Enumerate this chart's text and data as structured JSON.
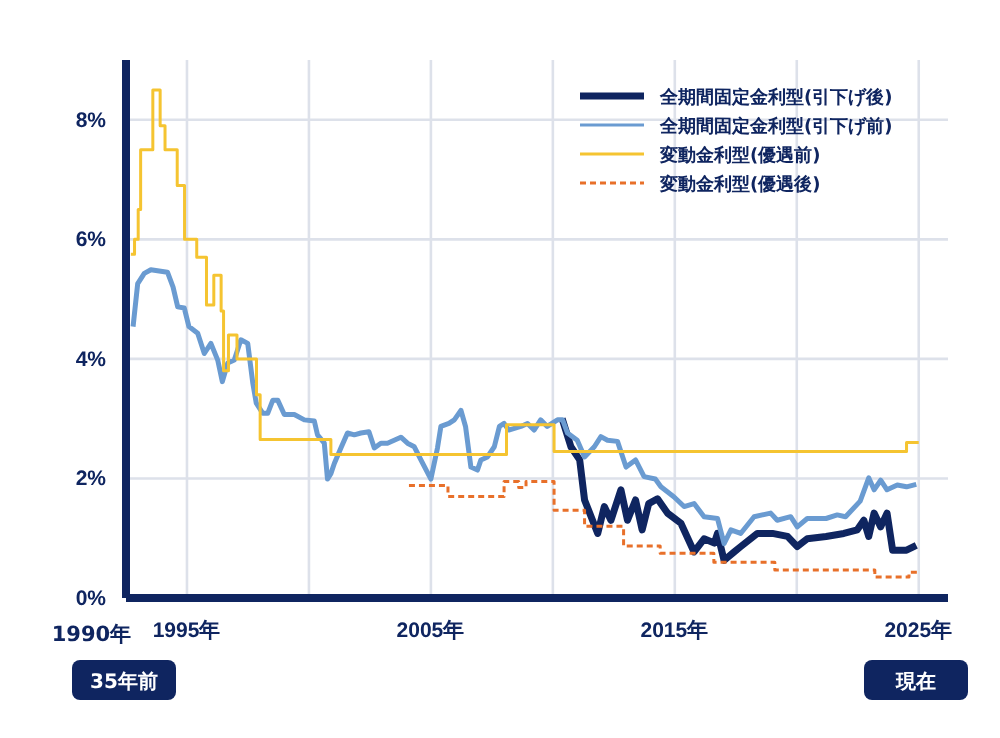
{
  "chart_data": {
    "type": "line",
    "xlim": [
      1992.5,
      2026.2
    ],
    "xticks": [
      {
        "value": 1995,
        "label": "1995年"
      },
      {
        "value": 2000,
        "label": null
      },
      {
        "value": 2005,
        "label": "2005年"
      },
      {
        "value": 2010,
        "label": null
      },
      {
        "value": 2015,
        "label": "2015年"
      },
      {
        "value": 2020,
        "label": null
      },
      {
        "value": 2025,
        "label": "2025年"
      }
    ],
    "ylim": [
      0,
      9
    ],
    "yticks": [
      {
        "value": 0,
        "label": "0%"
      },
      {
        "value": 2,
        "label": "2%"
      },
      {
        "value": 4,
        "label": "4%"
      },
      {
        "value": 6,
        "label": "6%"
      },
      {
        "value": 8,
        "label": "8%"
      }
    ],
    "grid": true,
    "legend": "top right",
    "marker": "none",
    "annotations": [
      "1990年",
      "35年前",
      "現在"
    ],
    "series": [
      {
        "name": "全期間固定金利型(引下げ後)",
        "color": "#0f2560",
        "line_style": "solid",
        "x": [
          2010.38,
          2010.74,
          2011.1,
          2011.3,
          2011.57,
          2011.84,
          2012.11,
          2012.38,
          2012.79,
          2013.06,
          2013.39,
          2013.66,
          2013.93,
          2014.29,
          2014.7,
          2015.25,
          2015.79,
          2016.2,
          2016.62,
          2016.75,
          2017.02,
          2017.43,
          2017.7,
          2018.38,
          2019.0,
          2019.62,
          2020.02,
          2020.43,
          2021.2,
          2021.93,
          2022.48,
          2022.75,
          2022.95,
          2023.17,
          2023.44,
          2023.7,
          2023.93,
          2024.5,
          2024.9
        ],
        "values": [
          3.0,
          2.53,
          2.31,
          1.64,
          1.36,
          1.08,
          1.53,
          1.3,
          1.81,
          1.3,
          1.64,
          1.14,
          1.58,
          1.66,
          1.42,
          1.25,
          0.77,
          0.99,
          0.92,
          1.08,
          0.63,
          0.77,
          0.86,
          1.08,
          1.08,
          1.03,
          0.86,
          0.99,
          1.03,
          1.08,
          1.14,
          1.3,
          1.03,
          1.42,
          1.19,
          1.42,
          0.8,
          0.8,
          0.88
        ]
      },
      {
        "name": "全期間固定金利型(引下げ前)",
        "color": "#6a9bd1",
        "line_style": "solid",
        "x": [
          1992.79,
          1992.98,
          1993.25,
          1993.52,
          1994.2,
          1994.43,
          1994.62,
          1994.89,
          1995.08,
          1995.44,
          1995.71,
          1995.98,
          1996.26,
          1996.45,
          1996.67,
          1996.94,
          1997.21,
          1997.49,
          1997.7,
          1997.84,
          1998.11,
          1998.31,
          1998.52,
          1998.72,
          1998.99,
          1999.4,
          1999.81,
          2000.22,
          2000.35,
          2000.63,
          2000.76,
          2000.9,
          2001.04,
          2001.31,
          2001.58,
          2001.86,
          2002.13,
          2002.46,
          2002.68,
          2002.95,
          2003.22,
          2003.77,
          2004.04,
          2004.32,
          2004.59,
          2005.0,
          2005.27,
          2005.41,
          2005.74,
          2005.96,
          2006.23,
          2006.42,
          2006.64,
          2006.91,
          2007.05,
          2007.32,
          2007.6,
          2007.81,
          2008.0,
          2008.19,
          2008.69,
          2008.96,
          2009.23,
          2009.5,
          2009.77,
          2010.19,
          2010.4,
          2010.6,
          2011.0,
          2011.3,
          2011.7,
          2011.97,
          2012.24,
          2012.65,
          2013.0,
          2013.39,
          2013.74,
          2014.2,
          2014.43,
          2014.97,
          2015.38,
          2015.79,
          2016.2,
          2016.75,
          2017.02,
          2017.3,
          2017.7,
          2018.25,
          2018.93,
          2019.2,
          2019.75,
          2020.02,
          2020.43,
          2021.2,
          2021.66,
          2022.0,
          2022.6,
          2022.95,
          2023.17,
          2023.44,
          2023.7,
          2024.12,
          2024.5,
          2024.9
        ],
        "values": [
          4.54,
          5.26,
          5.43,
          5.49,
          5.45,
          5.2,
          4.87,
          4.85,
          4.54,
          4.43,
          4.09,
          4.26,
          3.98,
          3.62,
          3.93,
          3.98,
          4.32,
          4.26,
          3.59,
          3.26,
          3.09,
          3.09,
          3.31,
          3.31,
          3.07,
          3.07,
          2.98,
          2.96,
          2.73,
          2.59,
          1.99,
          2.08,
          2.25,
          2.51,
          2.76,
          2.73,
          2.76,
          2.78,
          2.51,
          2.59,
          2.59,
          2.69,
          2.59,
          2.53,
          2.31,
          1.99,
          2.51,
          2.87,
          2.92,
          2.98,
          3.14,
          2.87,
          2.19,
          2.14,
          2.31,
          2.36,
          2.53,
          2.87,
          2.92,
          2.81,
          2.87,
          2.92,
          2.81,
          2.98,
          2.87,
          2.98,
          2.98,
          2.76,
          2.64,
          2.36,
          2.53,
          2.7,
          2.64,
          2.62,
          2.19,
          2.31,
          2.03,
          1.99,
          1.86,
          1.69,
          1.53,
          1.58,
          1.36,
          1.33,
          0.91,
          1.14,
          1.08,
          1.36,
          1.42,
          1.3,
          1.36,
          1.19,
          1.33,
          1.33,
          1.39,
          1.36,
          1.62,
          2.01,
          1.81,
          1.97,
          1.81,
          1.89,
          1.86,
          1.9
        ]
      },
      {
        "name": "変動金利型(優遇前)",
        "color": "#f5c431",
        "type": "step",
        "line_style": "solid",
        "x": [
          1992.7,
          1992.85,
          1993.0,
          1993.1,
          1993.6,
          1993.9,
          1994.1,
          1994.6,
          1994.9,
          1995.4,
          1995.8,
          1996.1,
          1996.4,
          1996.5,
          1996.7,
          1997.05,
          1997.85,
          1998.0,
          2000.9,
          2008.1,
          2010.05,
          2024.5,
          2025.0
        ],
        "values": [
          5.75,
          6.0,
          6.5,
          7.5,
          8.5,
          7.9,
          7.5,
          6.9,
          6.0,
          5.7,
          4.9,
          5.4,
          4.8,
          3.8,
          4.4,
          4.0,
          3.4,
          2.65,
          2.4,
          2.9,
          2.45,
          2.6,
          2.6
        ]
      },
      {
        "name": "変動金利型(優遇後)",
        "color": "#e8702a",
        "type": "step",
        "line_style": "dashed",
        "x": [
          2004.1,
          2005.7,
          2008.0,
          2008.6,
          2008.9,
          2010.05,
          2011.3,
          2012.9,
          2014.4,
          2016.6,
          2019.1,
          2023.2,
          2024.6,
          2025.0
        ],
        "values": [
          1.88,
          1.7,
          1.95,
          1.85,
          1.95,
          1.47,
          1.2,
          0.87,
          0.75,
          0.6,
          0.47,
          0.35,
          0.43,
          0.43
        ]
      }
    ]
  }
}
